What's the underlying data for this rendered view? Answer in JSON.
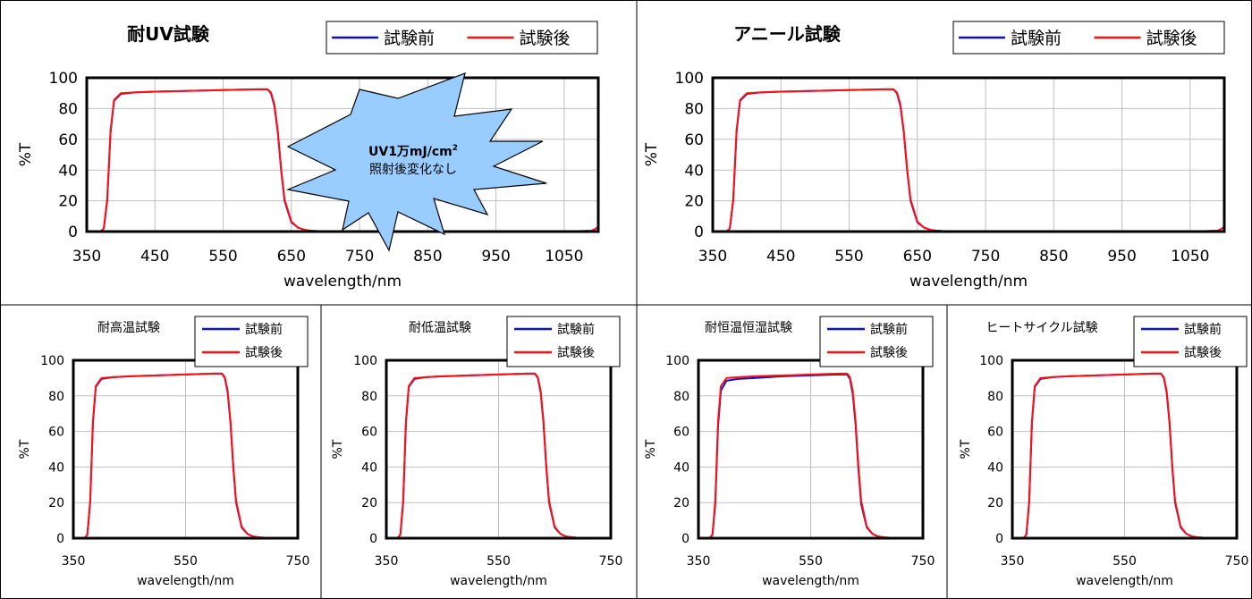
{
  "common": {
    "ylabel": "%T",
    "xlabel": "wavelength/nm",
    "legend": [
      "試験前",
      "試験後"
    ],
    "colors": {
      "before": "#1010c8",
      "after": "#ff1010",
      "plot_border": "#000000",
      "grid": "#bfbfbf"
    }
  },
  "annotation": {
    "line1": "UV1万mJ/cm",
    "sup": "2",
    "line2": "照射後変化なし",
    "fill": "#99ccff"
  },
  "chart_data": [
    {
      "type": "line",
      "title": "耐UV試験",
      "xlim": [
        350,
        1100
      ],
      "ylim": [
        0,
        100
      ],
      "xticks": [
        350,
        450,
        550,
        650,
        750,
        850,
        950,
        1050
      ],
      "yticks": [
        0,
        20,
        40,
        60,
        80,
        100
      ],
      "xlabel": "wavelength/nm",
      "ylabel": "%T",
      "series": [
        {
          "name": "試験前",
          "x": [
            350,
            370,
            375,
            380,
            385,
            390,
            400,
            420,
            450,
            500,
            550,
            600,
            615,
            620,
            625,
            630,
            635,
            640,
            650,
            660,
            670,
            680,
            700,
            750,
            850,
            950,
            1050,
            1090,
            1095,
            1100
          ],
          "y": [
            0,
            0,
            2,
            20,
            65,
            85,
            89.5,
            90.5,
            91,
            91.5,
            92,
            92.5,
            92.5,
            90,
            82,
            65,
            40,
            20,
            6,
            2.5,
            1,
            0.5,
            0,
            0,
            0,
            0,
            0,
            0.5,
            1.5,
            3
          ]
        },
        {
          "name": "試験後",
          "x": [
            350,
            370,
            375,
            380,
            385,
            390,
            400,
            420,
            450,
            500,
            550,
            600,
            615,
            620,
            625,
            630,
            635,
            640,
            650,
            660,
            670,
            680,
            700,
            750,
            850,
            950,
            1050,
            1090,
            1095,
            1100
          ],
          "y": [
            0,
            0,
            2,
            21,
            66,
            85.5,
            90,
            90.5,
            91,
            91.5,
            92,
            92.5,
            92.5,
            90.5,
            83,
            66,
            41,
            21,
            6.5,
            2.5,
            1,
            0.5,
            0,
            0,
            0,
            0,
            0,
            0.5,
            1.5,
            3
          ]
        }
      ]
    },
    {
      "type": "line",
      "title": "アニール試験",
      "xlim": [
        350,
        1100
      ],
      "ylim": [
        0,
        100
      ],
      "xticks": [
        350,
        450,
        550,
        650,
        750,
        850,
        950,
        1050
      ],
      "yticks": [
        0,
        20,
        40,
        60,
        80,
        100
      ],
      "xlabel": "wavelength/nm",
      "ylabel": "%T",
      "series": [
        {
          "name": "試験前",
          "x": [
            350,
            370,
            375,
            380,
            385,
            390,
            400,
            420,
            450,
            500,
            550,
            600,
            615,
            620,
            625,
            630,
            635,
            640,
            650,
            660,
            670,
            680,
            700,
            750,
            850,
            950,
            1050,
            1090,
            1095,
            1100
          ],
          "y": [
            0,
            0,
            2,
            20,
            65,
            85,
            89.5,
            90.5,
            91,
            91.5,
            92,
            92.5,
            92.5,
            90,
            82,
            65,
            40,
            20,
            6,
            2.5,
            1,
            0.5,
            0,
            0,
            0,
            0,
            0,
            0.5,
            1.5,
            3
          ]
        },
        {
          "name": "試験後",
          "x": [
            350,
            370,
            375,
            380,
            385,
            390,
            400,
            420,
            450,
            500,
            550,
            600,
            615,
            620,
            625,
            630,
            635,
            640,
            650,
            660,
            670,
            680,
            700,
            750,
            850,
            950,
            1050,
            1090,
            1095,
            1100
          ],
          "y": [
            0,
            0,
            2,
            21,
            66,
            85.5,
            90,
            90.5,
            91,
            91.5,
            92,
            92.5,
            92.5,
            90.5,
            83,
            66,
            41,
            21,
            6.5,
            2.5,
            1,
            0.5,
            0,
            0,
            0,
            0,
            0,
            0.5,
            1.5,
            3
          ]
        }
      ]
    },
    {
      "type": "line",
      "title": "耐高温試験",
      "xlim": [
        350,
        750
      ],
      "ylim": [
        0,
        100
      ],
      "xticks": [
        350,
        550,
        750
      ],
      "yticks": [
        0,
        20,
        40,
        60,
        80,
        100
      ],
      "xlabel": "wavelength/nm",
      "ylabel": "%T",
      "series": [
        {
          "name": "試験前",
          "x": [
            350,
            370,
            375,
            380,
            385,
            390,
            400,
            420,
            450,
            500,
            550,
            600,
            615,
            620,
            625,
            630,
            635,
            640,
            650,
            660,
            670,
            680,
            700,
            740,
            750
          ],
          "y": [
            0,
            0,
            2,
            20,
            65,
            85,
            89.5,
            90.5,
            91,
            91.5,
            92,
            92.5,
            92.5,
            90,
            82,
            65,
            40,
            20,
            6,
            2.5,
            1,
            0.5,
            0,
            0,
            0
          ]
        },
        {
          "name": "試験後",
          "x": [
            350,
            370,
            375,
            380,
            385,
            390,
            400,
            420,
            450,
            500,
            550,
            600,
            615,
            620,
            625,
            630,
            635,
            640,
            650,
            660,
            670,
            680,
            700,
            740,
            750
          ],
          "y": [
            0,
            0,
            2,
            21,
            66,
            85.5,
            90,
            90.5,
            91,
            91.5,
            92,
            92.5,
            92.5,
            90.5,
            83,
            66,
            41,
            21,
            6.5,
            2.5,
            1,
            0.5,
            0,
            0,
            0
          ]
        }
      ]
    },
    {
      "type": "line",
      "title": "耐低温試験",
      "xlim": [
        350,
        750
      ],
      "ylim": [
        0,
        100
      ],
      "xticks": [
        350,
        550,
        750
      ],
      "yticks": [
        0,
        20,
        40,
        60,
        80,
        100
      ],
      "xlabel": "wavelength/nm",
      "ylabel": "%T",
      "series": [
        {
          "name": "試験前",
          "x": [
            350,
            370,
            375,
            380,
            385,
            390,
            400,
            420,
            450,
            500,
            550,
            600,
            615,
            620,
            625,
            630,
            635,
            640,
            650,
            660,
            670,
            680,
            700,
            740,
            750
          ],
          "y": [
            0,
            0,
            2,
            20,
            65,
            85,
            89.5,
            90.5,
            91,
            91.5,
            92,
            92.5,
            92.5,
            90,
            82,
            65,
            40,
            20,
            6,
            2.5,
            1,
            0.5,
            0,
            0,
            0
          ]
        },
        {
          "name": "試験後",
          "x": [
            350,
            370,
            375,
            380,
            385,
            390,
            400,
            420,
            450,
            500,
            550,
            600,
            615,
            620,
            625,
            630,
            635,
            640,
            650,
            660,
            670,
            680,
            700,
            740,
            750
          ],
          "y": [
            0,
            0,
            2,
            21,
            66,
            85.5,
            90,
            90.5,
            91,
            91.5,
            92,
            92.5,
            92.5,
            90.5,
            83,
            66,
            41,
            21,
            6.5,
            2.5,
            1,
            0.5,
            0,
            0,
            0
          ]
        }
      ]
    },
    {
      "type": "line",
      "title": "耐恒温恒湿試験",
      "xlim": [
        350,
        750
      ],
      "ylim": [
        0,
        100
      ],
      "xticks": [
        350,
        550,
        750
      ],
      "yticks": [
        0,
        20,
        40,
        60,
        80,
        100
      ],
      "xlabel": "wavelength/nm",
      "ylabel": "%T",
      "series": [
        {
          "name": "試験前",
          "x": [
            350,
            370,
            375,
            380,
            385,
            390,
            400,
            420,
            450,
            500,
            550,
            600,
            615,
            620,
            625,
            630,
            635,
            640,
            650,
            660,
            670,
            680,
            700,
            740,
            750
          ],
          "y": [
            0,
            0,
            2,
            19,
            63,
            83,
            88.5,
            89.5,
            90,
            91,
            91.5,
            92,
            92,
            89.5,
            81,
            64,
            39,
            19,
            6,
            2.5,
            1,
            0.5,
            0,
            0,
            0
          ]
        },
        {
          "name": "試験後",
          "x": [
            350,
            370,
            375,
            380,
            385,
            390,
            400,
            420,
            450,
            500,
            550,
            600,
            615,
            620,
            625,
            630,
            635,
            640,
            650,
            660,
            670,
            680,
            700,
            740,
            750
          ],
          "y": [
            0,
            0,
            2,
            21,
            66,
            85.5,
            90,
            90.5,
            91,
            91.5,
            92,
            92.5,
            92.5,
            90.5,
            83,
            66,
            41,
            21,
            6.5,
            2.5,
            1,
            0.5,
            0,
            0,
            0
          ]
        }
      ]
    },
    {
      "type": "line",
      "title": "ヒートサイクル試験",
      "xlim": [
        350,
        750
      ],
      "ylim": [
        0,
        100
      ],
      "xticks": [
        350,
        550,
        750
      ],
      "yticks": [
        0,
        20,
        40,
        60,
        80,
        100
      ],
      "xlabel": "wavelength/nm",
      "ylabel": "%T",
      "series": [
        {
          "name": "試験前",
          "x": [
            350,
            370,
            375,
            380,
            385,
            390,
            400,
            420,
            450,
            500,
            550,
            600,
            615,
            620,
            625,
            630,
            635,
            640,
            650,
            660,
            670,
            680,
            700,
            740,
            750
          ],
          "y": [
            0,
            0,
            2,
            20,
            65,
            85,
            89.5,
            90.5,
            91,
            91.5,
            92,
            92.5,
            92.5,
            90,
            82,
            65,
            40,
            20,
            6,
            2.5,
            1,
            0.5,
            0,
            0,
            0
          ]
        },
        {
          "name": "試験後",
          "x": [
            350,
            370,
            375,
            380,
            385,
            390,
            400,
            420,
            450,
            500,
            550,
            600,
            615,
            620,
            625,
            630,
            635,
            640,
            650,
            660,
            670,
            680,
            700,
            740,
            750
          ],
          "y": [
            0,
            0,
            2,
            21,
            66,
            85.5,
            90,
            90.5,
            91,
            91.5,
            92,
            92.5,
            92.5,
            90.5,
            83,
            66,
            41,
            21,
            6.5,
            2.5,
            1,
            0.5,
            0,
            0,
            0
          ]
        }
      ]
    }
  ]
}
